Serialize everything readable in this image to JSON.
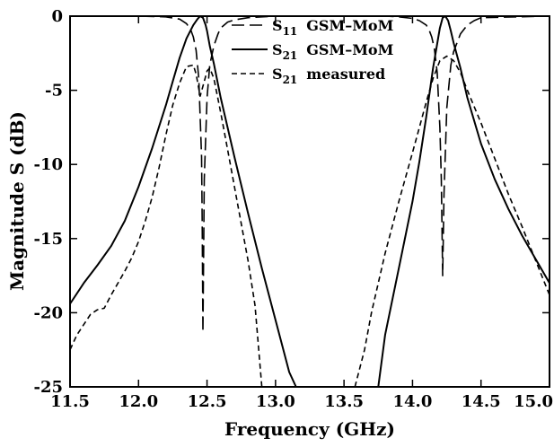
{
  "chart_data": {
    "type": "line",
    "xlabel": "Frequency (GHz)",
    "ylabel": "Magnitude S (dB)",
    "xlim": [
      11.5,
      15.0
    ],
    "ylim": [
      -25,
      0
    ],
    "x_ticks": [
      "11.5",
      "12.0",
      "12.5",
      "13.0",
      "13.5",
      "14.0",
      "14.5",
      "15.0"
    ],
    "y_ticks": [
      "0",
      "-5",
      "-10",
      "-15",
      "-20",
      "-25"
    ],
    "grid": false,
    "legend_position": "top-right",
    "series": [
      {
        "name_main": "S",
        "name_sub": "11",
        "name_rest": "GSM–MoM",
        "style": "long-dash",
        "color": "#000000",
        "x": [
          11.5,
          12.0,
          12.2,
          12.3,
          12.35,
          12.38,
          12.4,
          12.42,
          12.44,
          12.46,
          12.465,
          12.47,
          12.475,
          12.48,
          12.5,
          12.52,
          12.55,
          12.58,
          12.6,
          12.65,
          12.7,
          12.8,
          13.0,
          13.5,
          13.8,
          13.9,
          14.0,
          14.05,
          14.1,
          14.12,
          14.14,
          14.16,
          14.18,
          14.2,
          14.21,
          14.22,
          14.23,
          14.25,
          14.28,
          14.3,
          14.35,
          14.4,
          14.45,
          14.5,
          15.0
        ],
        "y": [
          0,
          0,
          -0.05,
          -0.2,
          -0.5,
          -0.9,
          -1.4,
          -2.3,
          -4.2,
          -9.5,
          -14,
          -21.3,
          -16,
          -11,
          -5.5,
          -3.3,
          -2.0,
          -1.2,
          -0.8,
          -0.4,
          -0.25,
          -0.1,
          0,
          0,
          0,
          -0.05,
          -0.15,
          -0.3,
          -0.6,
          -0.9,
          -1.4,
          -2.2,
          -3.8,
          -7.5,
          -11,
          -17.5,
          -12,
          -6.2,
          -3.3,
          -2.4,
          -1.2,
          -0.6,
          -0.3,
          -0.1,
          0
        ]
      },
      {
        "name_main": "S",
        "name_sub": "21",
        "name_rest": "GSM–MoM",
        "style": "solid",
        "color": "#000000",
        "x": [
          11.5,
          11.6,
          11.7,
          11.8,
          11.9,
          12.0,
          12.1,
          12.2,
          12.25,
          12.3,
          12.35,
          12.4,
          12.43,
          12.45,
          12.47,
          12.49,
          12.5,
          12.52,
          12.55,
          12.6,
          12.7,
          12.8,
          12.9,
          13.0,
          13.1,
          13.15,
          13.75,
          13.8,
          13.9,
          14.0,
          14.05,
          14.1,
          14.15,
          14.2,
          14.22,
          14.24,
          14.26,
          14.28,
          14.3,
          14.35,
          14.4,
          14.5,
          14.6,
          14.7,
          14.8,
          14.9,
          15.0
        ],
        "y": [
          -19.4,
          -18.0,
          -16.8,
          -15.5,
          -13.8,
          -11.5,
          -8.9,
          -6.0,
          -4.4,
          -2.8,
          -1.5,
          -0.6,
          -0.2,
          0,
          -0.1,
          -0.6,
          -1.0,
          -2.0,
          -3.2,
          -5.5,
          -9.5,
          -13.3,
          -17.0,
          -20.5,
          -24.0,
          -25.0,
          -25.0,
          -21.5,
          -17.0,
          -12.5,
          -9.8,
          -6.8,
          -3.5,
          -0.8,
          -0.1,
          0,
          -0.3,
          -1.0,
          -1.8,
          -3.5,
          -5.5,
          -8.6,
          -11.0,
          -13.0,
          -14.8,
          -16.4,
          -18.0
        ]
      },
      {
        "name_main": "S",
        "name_sub": "21",
        "name_rest": "measured",
        "style": "short-dash",
        "color": "#000000",
        "x": [
          11.5,
          11.55,
          11.6,
          11.65,
          11.7,
          11.75,
          11.8,
          11.85,
          11.9,
          11.95,
          12.0,
          12.05,
          12.1,
          12.15,
          12.2,
          12.25,
          12.3,
          12.35,
          12.4,
          12.42,
          12.45,
          12.48,
          12.5,
          12.52,
          12.55,
          12.6,
          12.65,
          12.7,
          12.75,
          12.8,
          12.85,
          12.9,
          13.58,
          13.65,
          13.7,
          13.8,
          13.9,
          14.0,
          14.05,
          14.1,
          14.15,
          14.2,
          14.25,
          14.3,
          14.35,
          14.4,
          14.5,
          14.6,
          14.7,
          14.8,
          14.9,
          15.0
        ],
        "y": [
          -22.5,
          -21.5,
          -20.8,
          -20.1,
          -19.8,
          -19.7,
          -18.8,
          -18.0,
          -17.2,
          -16.3,
          -15.2,
          -13.8,
          -12.2,
          -10.2,
          -8.0,
          -6.0,
          -4.5,
          -3.4,
          -3.3,
          -3.9,
          -5.4,
          -4.4,
          -3.7,
          -3.5,
          -4.2,
          -6.5,
          -9.0,
          -11.5,
          -14.0,
          -16.5,
          -19.5,
          -25.0,
          -25.0,
          -22.5,
          -20.0,
          -16.0,
          -12.5,
          -9.2,
          -7.5,
          -5.8,
          -4.2,
          -3.0,
          -2.7,
          -3.0,
          -3.8,
          -5.0,
          -7.2,
          -9.6,
          -12.0,
          -14.2,
          -16.5,
          -18.8
        ]
      }
    ]
  }
}
